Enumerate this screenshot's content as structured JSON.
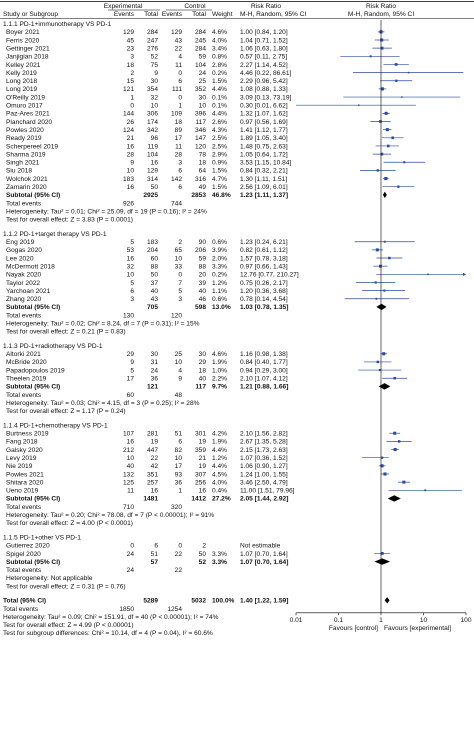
{
  "chart_data": {
    "type": "forest",
    "title": "",
    "columns": {
      "group_experimental": "Experimental",
      "group_control": "Control",
      "group_rr_left": "Risk Ratio",
      "group_rr_right": "Risk Ratio",
      "study": "Study or Subgroup",
      "events": "Events",
      "total": "Total",
      "events_c": "Events",
      "total_c": "Total",
      "weight": "Weight",
      "method_left": "M-H, Random, 95% CI",
      "method_right": "M-H, Random, 95% CI"
    },
    "axis": {
      "scale": "log",
      "ticks": [
        "0.01",
        "0.1",
        "1",
        "10",
        "100"
      ],
      "tick_values": [
        0.01,
        0.1,
        1,
        10,
        100
      ],
      "left_label": "Favours [control]",
      "right_label": "Favours [experimental]"
    },
    "subgroups": [
      {
        "title": "1.1.1 PD-1+immunotherapy VS PD-1",
        "studies": [
          {
            "name": "Boyer 2021",
            "e_ev": "129",
            "e_tot": "284",
            "c_ev": "129",
            "c_tot": "284",
            "weight": "4.6%",
            "ci": "1.00 [0.84, 1.20]",
            "rr": 1.0,
            "lo": 0.84,
            "hi": 1.2
          },
          {
            "name": "Ferris 2020",
            "e_ev": "45",
            "e_tot": "247",
            "c_ev": "43",
            "c_tot": "245",
            "weight": "4.0%",
            "ci": "1.04 [0.71, 1.52]",
            "rr": 1.04,
            "lo": 0.71,
            "hi": 1.52
          },
          {
            "name": "Gettinger 2021",
            "e_ev": "23",
            "e_tot": "276",
            "c_ev": "22",
            "c_tot": "284",
            "weight": "3.4%",
            "ci": "1.06 [0.63, 1.80]",
            "rr": 1.06,
            "lo": 0.63,
            "hi": 1.8
          },
          {
            "name": "Janjigian 2018",
            "e_ev": "3",
            "e_tot": "52",
            "c_ev": "4",
            "c_tot": "59",
            "weight": "0.8%",
            "ci": "0.57 [0.11, 2.75]",
            "rr": 0.57,
            "lo": 0.11,
            "hi": 2.75
          },
          {
            "name": "Kelley 2021",
            "e_ev": "18",
            "e_tot": "75",
            "c_ev": "11",
            "c_tot": "104",
            "weight": "2.8%",
            "ci": "2.27 [1.14, 4.52]",
            "rr": 2.27,
            "lo": 1.14,
            "hi": 4.52
          },
          {
            "name": "Kelly 2019",
            "e_ev": "2",
            "e_tot": "9",
            "c_ev": "0",
            "c_tot": "24",
            "weight": "0.2%",
            "ci": "4.46 [0.22, 86.61]",
            "rr": 4.46,
            "lo": 0.22,
            "hi": 86.61
          },
          {
            "name": "Long 2018",
            "e_ev": "15",
            "e_tot": "30",
            "c_ev": "6",
            "c_tot": "25",
            "weight": "1.5%",
            "ci": "2.29 [0.96, 5.42]",
            "rr": 2.29,
            "lo": 0.96,
            "lo_txt": "",
            "hi": 5.42
          },
          {
            "name": "Long 2019",
            "e_ev": "121",
            "e_tot": "354",
            "c_ev": "111",
            "c_tot": "352",
            "weight": "4.4%",
            "ci": "1.08 [0.88, 1.33]",
            "rr": 1.08,
            "lo": 0.88,
            "hi": 1.33
          },
          {
            "name": "O'Reilly 2019",
            "e_ev": "1",
            "e_tot": "32",
            "c_ev": "0",
            "c_tot": "30",
            "weight": "0.1%",
            "ci": "3.09 [0.13, 73.19]",
            "rr": 3.09,
            "lo": 0.13,
            "hi": 73.19
          },
          {
            "name": "Omuro 2017",
            "e_ev": "0",
            "e_tot": "10",
            "c_ev": "1",
            "c_tot": "10",
            "weight": "0.1%",
            "ci": "0.30 [0.01, 6.62]",
            "rr": 0.3,
            "lo": 0.01,
            "hi": 6.62
          },
          {
            "name": "Paz-Ares 2021",
            "e_ev": "144",
            "e_tot": "306",
            "c_ev": "109",
            "c_tot": "396",
            "weight": "4.4%",
            "ci": "1.32 [1.07, 1.62]",
            "rr": 1.32,
            "lo": 1.07,
            "hi": 1.62
          },
          {
            "name": "Planchard 2020",
            "e_ev": "26",
            "e_tot": "174",
            "c_ev": "18",
            "c_tot": "117",
            "weight": "2.6%",
            "ci": "0.97 [0.56, 1.69]",
            "rr": 0.97,
            "lo": 0.56,
            "hi": 1.69
          },
          {
            "name": "Powles 2020",
            "e_ev": "124",
            "e_tot": "342",
            "c_ev": "89",
            "c_tot": "346",
            "weight": "4.3%",
            "ci": "1.41 [1.12, 1.77]",
            "rr": 1.41,
            "lo": 1.12,
            "hi": 1.77
          },
          {
            "name": "Ready 2019",
            "e_ev": "21",
            "e_tot": "96",
            "c_ev": "17",
            "c_tot": "147",
            "weight": "2.5%",
            "ci": "1.89 [1.05, 3.40]",
            "rr": 1.89,
            "lo": 1.05,
            "hi": 3.4
          },
          {
            "name": "Scherpereel 2019",
            "e_ev": "16",
            "e_tot": "119",
            "c_ev": "11",
            "c_tot": "120",
            "weight": "2.5%",
            "ci": "1.48 [0.75, 2.63]",
            "rr": 1.48,
            "lo": 0.75,
            "hi": 2.63
          },
          {
            "name": "Sharma 2019",
            "e_ev": "28",
            "e_tot": "104",
            "c_ev": "28",
            "c_tot": "78",
            "weight": "2.9%",
            "ci": "1.05 [0.64, 1.72]",
            "rr": 1.05,
            "lo": 0.64,
            "hi": 1.72
          },
          {
            "name": "Singh 2021",
            "e_ev": "9",
            "e_tot": "16",
            "c_ev": "3",
            "c_tot": "18",
            "weight": "0.9%",
            "ci": "3.53 [1.15, 10.84]",
            "rr": 3.53,
            "lo": 1.15,
            "hi": 10.84
          },
          {
            "name": "Siu 2018",
            "e_ev": "10",
            "e_tot": "129",
            "c_ev": "6",
            "c_tot": "64",
            "weight": "1.5%",
            "ci": "0.84 [0.32, 2.21]",
            "rr": 0.84,
            "lo": 0.32,
            "hi": 2.21
          },
          {
            "name": "Wolchok 2021",
            "e_ev": "183",
            "e_tot": "314",
            "c_ev": "142",
            "c_tot": "316",
            "weight": "4.7%",
            "ci": "1.30 [1.11, 1.51]",
            "rr": 1.3,
            "lo": 1.11,
            "hi": 1.51
          },
          {
            "name": "Zamarin 2020",
            "e_ev": "16",
            "e_tot": "50",
            "c_ev": "6",
            "c_tot": "49",
            "weight": "1.5%",
            "ci": "2.56 [1.09, 6.01]",
            "rr": 2.56,
            "lo": 1.09,
            "hi": 6.01
          }
        ],
        "subtotal": {
          "label": "Subtotal (95% CI)",
          "e_tot": "2925",
          "c_tot": "2853",
          "weight": "46.8%",
          "ci": "1.23 [1.11, 1.37]",
          "rr": 1.23,
          "lo": 1.11,
          "hi": 1.37
        },
        "total_events": {
          "label": "Total events",
          "e": "926",
          "c": "744"
        },
        "heterogeneity": "Heterogeneity: Tau² = 0.01; Chi² = 25.09, df = 19 (P = 0.16); I² = 24%",
        "overall": "Test for overall effect: Z = 3.83 (P = 0.0001)"
      },
      {
        "title": "1.1.2 PD-1+target therapy VS PD-1",
        "studies": [
          {
            "name": "Eng 2019",
            "e_ev": "5",
            "e_tot": "183",
            "c_ev": "2",
            "c_tot": "90",
            "weight": "0.6%",
            "ci": "1.23 [0.24, 6.21]",
            "rr": 1.23,
            "lo": 0.24,
            "hi": 6.21
          },
          {
            "name": "Gogas 2020",
            "e_ev": "53",
            "e_tot": "204",
            "c_ev": "65",
            "c_tot": "206",
            "weight": "3.9%",
            "ci": "0.82 [0.61, 1.12]",
            "rr": 0.82,
            "lo": 0.61,
            "hi": 1.12
          },
          {
            "name": "Lee 2020",
            "e_ev": "16",
            "e_tot": "60",
            "c_ev": "10",
            "c_tot": "59",
            "weight": "2.0%",
            "ci": "1.57 [0.78, 3.18]",
            "rr": 1.57,
            "lo": 0.78,
            "hi": 3.18
          },
          {
            "name": "McDermott 2018",
            "e_ev": "32",
            "e_tot": "88",
            "c_ev": "33",
            "c_tot": "88",
            "weight": "3.3%",
            "ci": "0.97 [0.66, 1.43]",
            "rr": 0.97,
            "lo": 0.66,
            "hi": 1.43
          },
          {
            "name": "Nayak 2020",
            "e_ev": "10",
            "e_tot": "50",
            "c_ev": "0",
            "c_tot": "20",
            "weight": "0.2%",
            "ci": "12.76 [0.77, 210.27]",
            "rr": 12.76,
            "lo": 0.77,
            "hi": 210.27
          },
          {
            "name": "Taylor 2022",
            "e_ev": "5",
            "e_tot": "37",
            "c_ev": "7",
            "c_tot": "39",
            "weight": "1.2%",
            "ci": "0.75 [0.26, 2.17]",
            "rr": 0.75,
            "lo": 0.26,
            "hi": 2.17
          },
          {
            "name": "Yarchoan 2021",
            "e_ev": "6",
            "e_tot": "40",
            "c_ev": "5",
            "c_tot": "40",
            "weight": "1.1%",
            "ci": "1.20 [0.36, 3.68]",
            "rr": 1.2,
            "lo": 0.36,
            "hi": 3.68
          },
          {
            "name": "Zhang 2020",
            "e_ev": "3",
            "e_tot": "43",
            "c_ev": "3",
            "c_tot": "46",
            "weight": "0.6%",
            "ci": "0.78 [0.14, 4.54]",
            "rr": 0.78,
            "lo": 0.14,
            "hi": 4.54
          }
        ],
        "subtotal": {
          "label": "Subtotal (95% CI)",
          "e_tot": "705",
          "c_tot": "598",
          "weight": "13.0%",
          "ci": "1.03 [0.78, 1.35]",
          "rr": 1.03,
          "lo": 0.78,
          "hi": 1.35
        },
        "total_events": {
          "label": "Total events",
          "e": "130",
          "c": "120"
        },
        "heterogeneity": "Heterogeneity: Tau² = 0.02; Chi² = 8.24, df = 7 (P = 0.31); I² = 15%",
        "overall": "Test for overall effect: Z = 0.21 (P = 0.83)"
      },
      {
        "title": "1.1.3 PD-1+radiotherapy VS PD-1",
        "studies": [
          {
            "name": "Altorki 2021",
            "e_ev": "29",
            "e_tot": "30",
            "c_ev": "25",
            "c_tot": "30",
            "weight": "4.6%",
            "ci": "1.16 [0.98, 1.38]",
            "rr": 1.16,
            "lo": 0.98,
            "hi": 1.38
          },
          {
            "name": "McBride 2020",
            "e_ev": "9",
            "e_tot": "31",
            "c_ev": "10",
            "c_tot": "29",
            "weight": "1.9%",
            "ci": "0.84 [0.40, 1.77]",
            "rr": 0.84,
            "lo": 0.4,
            "hi": 1.77
          },
          {
            "name": "Papadopoulos 2019",
            "e_ev": "5",
            "e_tot": "24",
            "c_ev": "4",
            "c_tot": "18",
            "weight": "1.0%",
            "ci": "0.94 [0.29, 3.00]",
            "rr": 0.94,
            "lo": 0.29,
            "hi": 3.0
          },
          {
            "name": "Theelen 2019",
            "e_ev": "17",
            "e_tot": "36",
            "c_ev": "9",
            "c_tot": "40",
            "weight": "2.2%",
            "ci": "2.10 [1.07, 4.12]",
            "rr": 2.1,
            "lo": 1.07,
            "hi": 4.12
          }
        ],
        "subtotal": {
          "label": "Subtotal (95% CI)",
          "e_tot": "121",
          "c_tot": "117",
          "weight": "9.7%",
          "ci": "1.21 [0.88, 1.66]",
          "rr": 1.21,
          "lo": 0.88,
          "hi": 1.66
        },
        "total_events": {
          "label": "Total events",
          "e": "60",
          "c": "48"
        },
        "heterogeneity": "Heterogeneity: Tau² = 0.03; Chi² = 4.15, df = 3 (P = 0.25); I² = 28%",
        "overall": "Test for overall effect: Z = 1.17 (P = 0.24)"
      },
      {
        "title": "1.1.4 PD-1+chemotherapy VS PD-1",
        "studies": [
          {
            "name": "Burtness 2019",
            "e_ev": "107",
            "e_tot": "281",
            "c_ev": "51",
            "c_tot": "301",
            "weight": "4.2%",
            "ci": "2.10 [1.56, 2.82]",
            "rr": 2.1,
            "lo": 1.56,
            "hi": 2.82
          },
          {
            "name": "Fang 2018",
            "e_ev": "16",
            "e_tot": "19",
            "c_ev": "6",
            "c_tot": "19",
            "weight": "1.9%",
            "ci": "2.67 [1.35, 5.28]",
            "rr": 2.67,
            "lo": 1.35,
            "hi": 5.28
          },
          {
            "name": "Galsky 2020",
            "e_ev": "212",
            "e_tot": "447",
            "c_ev": "82",
            "c_tot": "359",
            "weight": "4.4%",
            "ci": "2.15 [1.73, 2.63]",
            "rr": 2.15,
            "lo": 1.73,
            "hi": 2.63
          },
          {
            "name": "Levy 2019",
            "e_ev": "10",
            "e_tot": "22",
            "c_ev": "10",
            "c_tot": "21",
            "weight": "1.2%",
            "ci": "1.07 [0.36, 1.52]",
            "rr": 1.07,
            "lo": 0.36,
            "hi": 1.52
          },
          {
            "name": "Nie 2019",
            "e_ev": "40",
            "e_tot": "42",
            "c_ev": "17",
            "c_tot": "19",
            "weight": "4.4%",
            "ci": "1.06 [0.90, 1.27]",
            "rr": 1.06,
            "lo": 0.9,
            "hi": 1.27
          },
          {
            "name": "Powles 2021",
            "e_ev": "132",
            "e_tot": "351",
            "c_ev": "93",
            "c_tot": "307",
            "weight": "4.5%",
            "ci": "1.24 [1.00, 1.55]",
            "rr": 1.24,
            "lo": 1.0,
            "hi": 1.55
          },
          {
            "name": "Shitara 2020",
            "e_ev": "125",
            "e_tot": "257",
            "c_ev": "36",
            "c_tot": "256",
            "weight": "4.0%",
            "ci": "3.46 [2.50, 4.79]",
            "rr": 3.46,
            "lo": 2.5,
            "hi": 4.79
          },
          {
            "name": "Ueno 2019",
            "e_ev": "11",
            "e_tot": "16",
            "c_ev": "1",
            "c_tot": "16",
            "weight": "0.4%",
            "ci": "11.00 [1.51, 79.96]",
            "rr": 11.0,
            "lo": 1.51,
            "hi": 79.96
          }
        ],
        "subtotal": {
          "label": "Subtotal (95% CI)",
          "e_tot": "1481",
          "c_tot": "1412",
          "weight": "27.2%",
          "ci": "2.05 [1.44, 2.92]",
          "rr": 2.05,
          "lo": 1.44,
          "hi": 2.92
        },
        "total_events": {
          "label": "Total events",
          "e": "710",
          "c": "320"
        },
        "heterogeneity": "Heterogeneity: Tau² = 0.20; Chi² = 78.08, df = 7 (P < 0.00001); I² = 91%",
        "overall": "Test for overall effect: Z = 4.00 (P < 0.0001)"
      },
      {
        "title": "1.1.5 PD-1+other VS PD-1",
        "studies": [
          {
            "name": "Gutierrez 2020",
            "e_ev": "0",
            "e_tot": "6",
            "c_ev": "0",
            "c_tot": "2",
            "weight": "",
            "ci": "Not estimable",
            "rr": null,
            "lo": null,
            "hi": null
          },
          {
            "name": "Spigel 2020",
            "e_ev": "24",
            "e_tot": "51",
            "c_ev": "22",
            "c_tot": "50",
            "weight": "3.3%",
            "ci": "1.07 [0.70, 1.64]",
            "rr": 1.07,
            "lo": 0.7,
            "hi": 1.64
          }
        ],
        "subtotal": {
          "label": "Subtotal (95% CI)",
          "e_tot": "57",
          "c_tot": "52",
          "weight": "3.3%",
          "ci": "1.07 [0.70, 1.64]",
          "rr": 1.07,
          "lo": 0.7,
          "hi": 1.64
        },
        "total_events": {
          "label": "Total events",
          "e": "24",
          "c": "22"
        },
        "heterogeneity": "Heterogeneity: Not applicable",
        "overall": "Test for overall effect: Z = 0.31 (P = 0.76)"
      }
    ],
    "total": {
      "label": "Total (95% CI)",
      "e_tot": "5289",
      "c_tot": "5032",
      "weight": "100.0%",
      "ci": "1.40 [1.22, 1.59]",
      "rr": 1.4,
      "lo": 1.22,
      "hi": 1.59
    },
    "total_events": {
      "label": "Total events",
      "e": "1850",
      "c": "1254"
    },
    "heterogeneity": "Heterogeneity: Tau² = 0.09; Chi² = 151.91, df = 40 (P < 0.00001); I² = 74%",
    "overall": "Test for overall effect: Z = 4.99 (P < 0.00001)",
    "subgroup_diff": "Test for subgroup differences: Chi² = 10.14, df = 4 (P = 0.04), I² = 60.6%",
    "colors": {
      "marker": "#2b4aa8",
      "diamond": "#000000",
      "text": "#111111"
    }
  }
}
